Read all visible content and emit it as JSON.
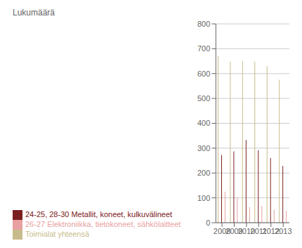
{
  "chart_data": {
    "type": "bar",
    "ylabel": "Lukumäärä",
    "categories": [
      "2008",
      "2009",
      "2010",
      "2011",
      "2012",
      "2013"
    ],
    "series": [
      {
        "name": "Toimialat yhteensä",
        "color": "#c8bc8c",
        "values": [
          670,
          648,
          650,
          648,
          630,
          575
        ]
      },
      {
        "name": "24-25, 28-30 Metallit, koneet, kulkuvälineet",
        "color": "#7b2020",
        "values": [
          272,
          287,
          333,
          292,
          260,
          228
        ]
      },
      {
        "name": "26-27 Elektroniikka, tietokoneet, sähkölaitteet",
        "color": "#e8a0a0",
        "values": [
          125,
          100,
          63,
          68,
          52,
          48
        ]
      }
    ],
    "ylim": [
      0,
      800
    ],
    "yticks": [
      0,
      100,
      200,
      300,
      400,
      500,
      600,
      700,
      800
    ],
    "grid": true,
    "legend": "bottom"
  }
}
